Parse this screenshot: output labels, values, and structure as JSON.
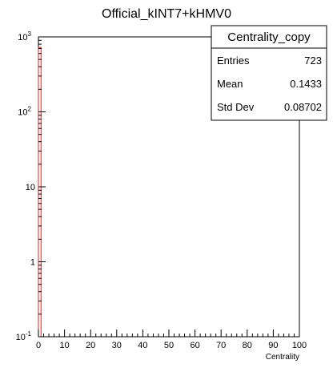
{
  "chart_data": {
    "type": "bar",
    "title": "Official_kINT7+kHMV0",
    "xlabel": "Centrality",
    "ylabel": "",
    "x_ticks": [
      "0",
      "10",
      "20",
      "30",
      "40",
      "50",
      "60",
      "70",
      "80",
      "90",
      "100"
    ],
    "xlim": [
      0,
      100
    ],
    "ylim": [
      0.1,
      1000
    ],
    "y_scale": "log",
    "y_tick_labels": [
      {
        "base": "10",
        "exp": "-1",
        "value": 0.1
      },
      {
        "base": "1",
        "exp": "",
        "value": 1
      },
      {
        "base": "10",
        "exp": "",
        "value": 10
      },
      {
        "base": "10",
        "exp": "2",
        "value": 100
      },
      {
        "base": "10",
        "exp": "3",
        "value": 1000
      }
    ],
    "bins": {
      "low": [
        0
      ],
      "high": [
        1
      ],
      "values": [
        723
      ]
    },
    "series_color": "#d62728",
    "grid": false,
    "stats_box": {
      "name": "Centrality_copy",
      "entries_label": "Entries",
      "entries": "723",
      "mean_label": "Mean",
      "mean": "0.1433",
      "stddev_label": "Std Dev",
      "stddev": "0.08702",
      "placement": "top-right"
    }
  }
}
